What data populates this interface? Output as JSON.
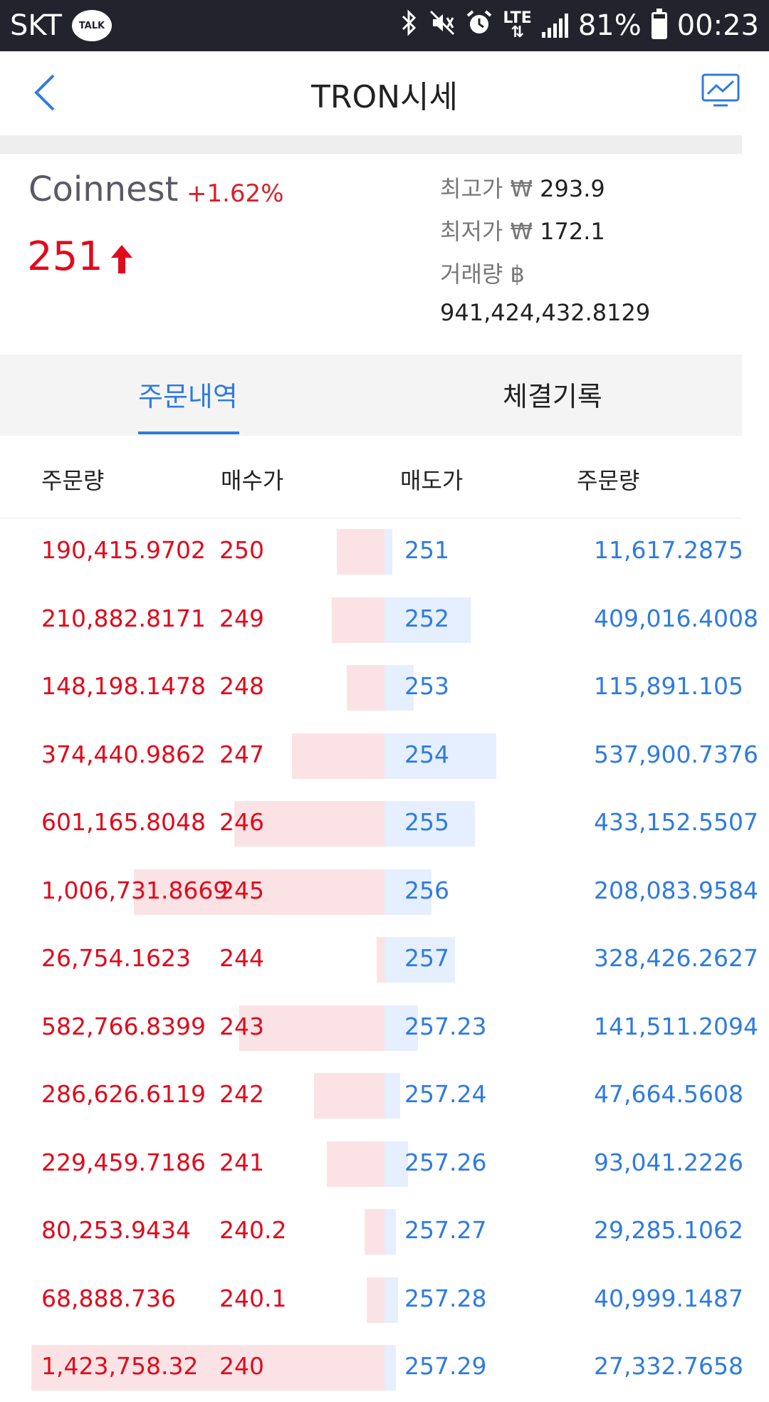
{
  "status_bar": {
    "carrier": "SKT",
    "talk_badge": "TALK",
    "network": "LTE",
    "battery": "81%",
    "time": "00:23"
  },
  "header": {
    "title": "TRON시세"
  },
  "summary": {
    "exchange": "Coinnest",
    "change": "+1.62%",
    "price": "251",
    "high_label": "최고가 ₩",
    "high_value": "293.9",
    "low_label": "최저가 ₩",
    "low_value": "172.1",
    "volume_label": "거래량 ฿",
    "volume_value": "941,424,432.8129"
  },
  "tabs": [
    {
      "label": "주문내역",
      "active": true
    },
    {
      "label": "체결기록",
      "active": false
    }
  ],
  "columns": {
    "buy_qty": "주문량",
    "buy_price": "매수가",
    "sell_price": "매도가",
    "sell_qty": "주문량"
  },
  "orders": [
    {
      "buy_qty": "190,415.9702",
      "buy_price": "250",
      "sell_price": "251",
      "sell_qty": "11,617.2875",
      "buy_depth": 0.19,
      "sell_depth": 0.01
    },
    {
      "buy_qty": "210,882.8171",
      "buy_price": "249",
      "sell_price": "252",
      "sell_qty": "409,016.4008",
      "buy_depth": 0.21,
      "sell_depth": 0.41
    },
    {
      "buy_qty": "148,198.1478",
      "buy_price": "248",
      "sell_price": "253",
      "sell_qty": "115,891.105",
      "buy_depth": 0.15,
      "sell_depth": 0.12
    },
    {
      "buy_qty": "374,440.9862",
      "buy_price": "247",
      "sell_price": "254",
      "sell_qty": "537,900.7376",
      "buy_depth": 0.37,
      "sell_depth": 0.54
    },
    {
      "buy_qty": "601,165.8048",
      "buy_price": "246",
      "sell_price": "255",
      "sell_qty": "433,152.5507",
      "buy_depth": 0.6,
      "sell_depth": 0.43
    },
    {
      "buy_qty": "1,006,731.8669",
      "buy_price": "245",
      "sell_price": "256",
      "sell_qty": "208,083.9584",
      "buy_depth": 1.0,
      "sell_depth": 0.21
    },
    {
      "buy_qty": "26,754.1623",
      "buy_price": "244",
      "sell_price": "257",
      "sell_qty": "328,426.2627",
      "buy_depth": 0.03,
      "sell_depth": 0.33
    },
    {
      "buy_qty": "582,766.8399",
      "buy_price": "243",
      "sell_price": "257.23",
      "sell_qty": "141,511.2094",
      "buy_depth": 0.58,
      "sell_depth": 0.14
    },
    {
      "buy_qty": "286,626.6119",
      "buy_price": "242",
      "sell_price": "257.24",
      "sell_qty": "47,664.5608",
      "buy_depth": 0.28,
      "sell_depth": 0.05
    },
    {
      "buy_qty": "229,459.7186",
      "buy_price": "241",
      "sell_price": "257.26",
      "sell_qty": "93,041.2226",
      "buy_depth": 0.23,
      "sell_depth": 0.09
    },
    {
      "buy_qty": "80,253.9434",
      "buy_price": "240.2",
      "sell_price": "257.27",
      "sell_qty": "29,285.1062",
      "buy_depth": 0.08,
      "sell_depth": 0.03
    },
    {
      "buy_qty": "68,888.736",
      "buy_price": "240.1",
      "sell_price": "257.28",
      "sell_qty": "40,999.1487",
      "buy_depth": 0.07,
      "sell_depth": 0.04
    },
    {
      "buy_qty": "1,423,758.32",
      "buy_price": "240",
      "sell_price": "257.29",
      "sell_qty": "27,332.7658",
      "buy_depth": 1.41,
      "sell_depth": 0.03
    }
  ],
  "colors": {
    "buy": "#e00b1c",
    "sell": "#2f7be0",
    "status_bar": "#23232d"
  }
}
